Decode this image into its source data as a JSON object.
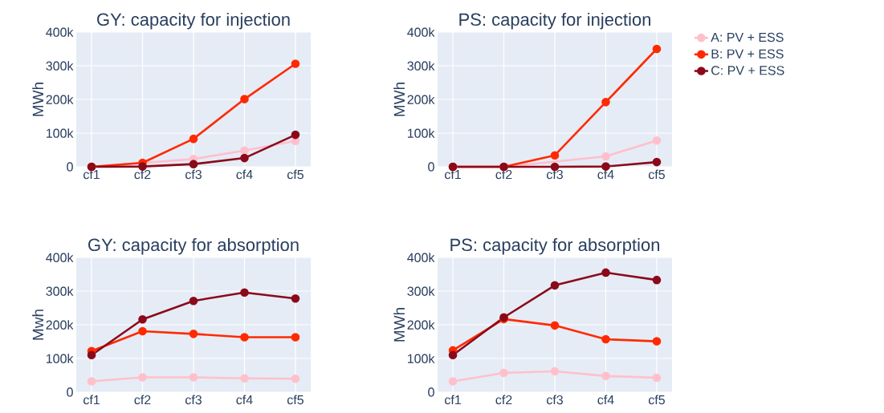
{
  "chart_data": [
    {
      "type": "line",
      "title": "GY: capacity for injection",
      "ylabel": "MWh",
      "categories": [
        "cf1",
        "cf2",
        "cf3",
        "cf4",
        "cf5"
      ],
      "ylim": [
        0,
        400000
      ],
      "yticks": [
        0,
        {
          "value": 100000,
          "label": "100k"
        },
        {
          "value": 200000,
          "label": "200k"
        },
        {
          "value": 300000,
          "label": "300k"
        },
        {
          "value": 400000,
          "label": "400k"
        }
      ],
      "grid": true,
      "marker": "circle",
      "series": [
        {
          "color": "#ffc0cb",
          "values": [
            0,
            null,
            23000,
            48000,
            77000
          ]
        },
        {
          "color": "#ff2a00",
          "values": [
            0,
            12000,
            83000,
            201000,
            306000
          ]
        },
        {
          "color": "#8b0a1a",
          "values": [
            0,
            1000,
            8000,
            26000,
            95000
          ]
        }
      ]
    },
    {
      "type": "line",
      "title": "PS: capacity for injection",
      "ylabel": "MWh",
      "categories": [
        "cf1",
        "cf2",
        "cf3",
        "cf4",
        "cf5"
      ],
      "ylim": [
        0,
        400000
      ],
      "yticks": [
        0,
        {
          "value": 100000,
          "label": "100k"
        },
        {
          "value": 200000,
          "label": "200k"
        },
        {
          "value": 300000,
          "label": "300k"
        },
        {
          "value": 400000,
          "label": "400k"
        }
      ],
      "grid": true,
      "marker": "circle",
      "legend": "right",
      "series": [
        {
          "name": "A: PV + ESS",
          "color": "#ffc0cb",
          "values": [
            0,
            0,
            null,
            31000,
            78000
          ]
        },
        {
          "name": "B: PV + ESS",
          "color": "#ff2a00",
          "values": [
            0,
            0,
            34000,
            192000,
            350000
          ]
        },
        {
          "name": "C: PV + ESS",
          "color": "#8b0a1a",
          "values": [
            0,
            0,
            0,
            1000,
            14000
          ]
        }
      ]
    },
    {
      "type": "line",
      "title": "GY: capacity for absorption",
      "ylabel": "Mwh",
      "categories": [
        "cf1",
        "cf2",
        "cf3",
        "cf4",
        "cf5"
      ],
      "ylim": [
        0,
        400000
      ],
      "yticks": [
        0,
        {
          "value": 100000,
          "label": "100k"
        },
        {
          "value": 200000,
          "label": "200k"
        },
        {
          "value": 300000,
          "label": "300k"
        },
        {
          "value": 400000,
          "label": "400k"
        }
      ],
      "grid": true,
      "marker": "circle",
      "series": [
        {
          "color": "#ffc0cb",
          "values": [
            32000,
            44000,
            44000,
            41000,
            40000
          ]
        },
        {
          "color": "#ff2a00",
          "values": [
            122000,
            181000,
            173000,
            163000,
            163000
          ]
        },
        {
          "color": "#8b0a1a",
          "values": [
            110000,
            216000,
            271000,
            296000,
            278000
          ]
        }
      ]
    },
    {
      "type": "line",
      "title": "PS: capacity for absorption",
      "ylabel": "MWh",
      "categories": [
        "cf1",
        "cf2",
        "cf3",
        "cf4",
        "cf5"
      ],
      "ylim": [
        0,
        400000
      ],
      "yticks": [
        0,
        {
          "value": 100000,
          "label": "100k"
        },
        {
          "value": 200000,
          "label": "200k"
        },
        {
          "value": 300000,
          "label": "300k"
        },
        {
          "value": 400000,
          "label": "400k"
        }
      ],
      "grid": true,
      "marker": "circle",
      "series": [
        {
          "color": "#ffc0cb",
          "values": [
            32000,
            57000,
            62000,
            48000,
            43000
          ]
        },
        {
          "color": "#ff2a00",
          "values": [
            124000,
            217000,
            198000,
            157000,
            151000
          ]
        },
        {
          "color": "#8b0a1a",
          "values": [
            110000,
            222000,
            317000,
            355000,
            333000
          ]
        }
      ]
    }
  ]
}
